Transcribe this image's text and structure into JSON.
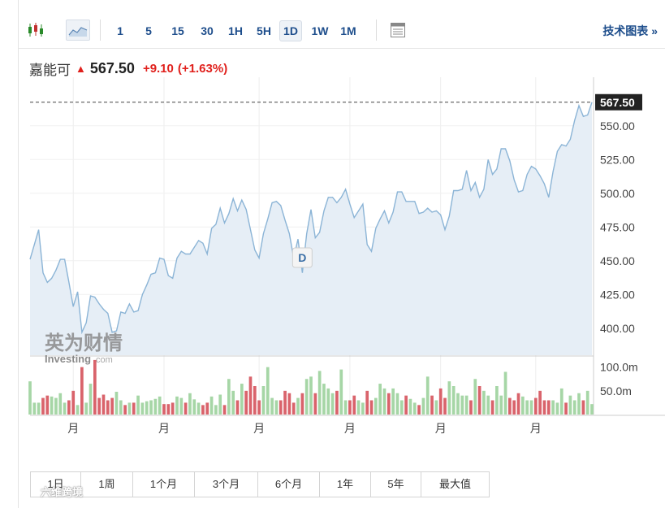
{
  "toolbar": {
    "timeframes": [
      "1",
      "5",
      "15",
      "30",
      "1H",
      "5H",
      "1D",
      "1W",
      "1M"
    ],
    "active_timeframe": "1D",
    "tech_label": "技术图表 »"
  },
  "quote": {
    "name": "嘉能可",
    "arrow": "▲",
    "price": "567.50",
    "change": "+9.10",
    "change_pct": "(+1.63%)"
  },
  "ranges": [
    "1日",
    "1周",
    "1个月",
    "3个月",
    "6个月",
    "1年",
    "5年",
    "最大值"
  ],
  "watermark": {
    "investing_cn": "英为财情",
    "investing_en": "Investing",
    "investing_suffix": ".com",
    "bottom_text": "六维跨境"
  },
  "colors": {
    "line": "#8bb4d6",
    "area": "#e6eef6",
    "vol_up": "#a6d6a6",
    "vol_down": "#d9636b",
    "price_tag": "#222222",
    "accent_red": "#e0201c",
    "link_blue": "#1e4e8c"
  },
  "chart_data": {
    "type": "area",
    "price_axis": {
      "ylim": [
        380,
        580
      ],
      "ticks": [
        400,
        425,
        450,
        475,
        500,
        525,
        550
      ],
      "tick_labels": [
        "400.00",
        "425.00",
        "450.00",
        "475.00",
        "500.00",
        "525.00",
        "550.00"
      ]
    },
    "last_price_label": "567.50",
    "last_price": 567.5,
    "event_marker": {
      "label": "D",
      "index": 63
    },
    "x_tick_labels": [
      "月",
      "月",
      "月",
      "月",
      "月",
      "月"
    ],
    "x_tick_index": [
      10,
      31,
      53,
      74,
      95,
      117
    ],
    "values": [
      451,
      462,
      473,
      441,
      434,
      437,
      443,
      451,
      451,
      434,
      416,
      427,
      397,
      404,
      424,
      423,
      418,
      414,
      411,
      397,
      398,
      412,
      411,
      418,
      412,
      413,
      425,
      432,
      440,
      441,
      452,
      451,
      439,
      437,
      452,
      457,
      455,
      455,
      460,
      465,
      463,
      455,
      474,
      477,
      489,
      478,
      485,
      496,
      487,
      495,
      488,
      473,
      458,
      452,
      470,
      481,
      493,
      494,
      491,
      480,
      470,
      452,
      466,
      441,
      470,
      488,
      467,
      471,
      487,
      497,
      497,
      493,
      497,
      503,
      492,
      482,
      487,
      492,
      462,
      457,
      474,
      481,
      487,
      478,
      486,
      501,
      501,
      494,
      494,
      494,
      485,
      486,
      489,
      486,
      487,
      484,
      473,
      483,
      502,
      502,
      503,
      517,
      502,
      508,
      497,
      503,
      525,
      514,
      518,
      533,
      533,
      524,
      510,
      501,
      502,
      514,
      520,
      518,
      513,
      507,
      497,
      516,
      531,
      536,
      535,
      540,
      554,
      565,
      557,
      558,
      567.5
    ],
    "volume_axis": {
      "ylim": [
        0,
        120
      ],
      "ticks": [
        50,
        100
      ],
      "tick_labels": [
        "50.0m",
        "100.0m"
      ]
    },
    "volumes": [
      70,
      25,
      25,
      35,
      40,
      38,
      35,
      45,
      25,
      30,
      50,
      20,
      100,
      25,
      65,
      115,
      35,
      42,
      30,
      35,
      48,
      30,
      20,
      25,
      25,
      40,
      25,
      28,
      30,
      33,
      38,
      22,
      22,
      25,
      38,
      35,
      25,
      45,
      32,
      25,
      20,
      25,
      38,
      20,
      42,
      20,
      75,
      50,
      30,
      65,
      50,
      80,
      60,
      30,
      60,
      100,
      35,
      30,
      30,
      50,
      45,
      25,
      35,
      45,
      75,
      80,
      45,
      92,
      65,
      55,
      45,
      50,
      95,
      30,
      30,
      40,
      30,
      25,
      50,
      30,
      35,
      65,
      55,
      45,
      55,
      45,
      30,
      40,
      33,
      25,
      20,
      35,
      80,
      40,
      30,
      55,
      35,
      70,
      60,
      45,
      40,
      40,
      30,
      75,
      60,
      50,
      40,
      30,
      60,
      40,
      90,
      35,
      30,
      45,
      38,
      30,
      30,
      35,
      50,
      30,
      30,
      30,
      25,
      55,
      25,
      40,
      30,
      45,
      30,
      50,
      22
    ],
    "volume_colors": "up-green/down-red by close-to-close change"
  }
}
